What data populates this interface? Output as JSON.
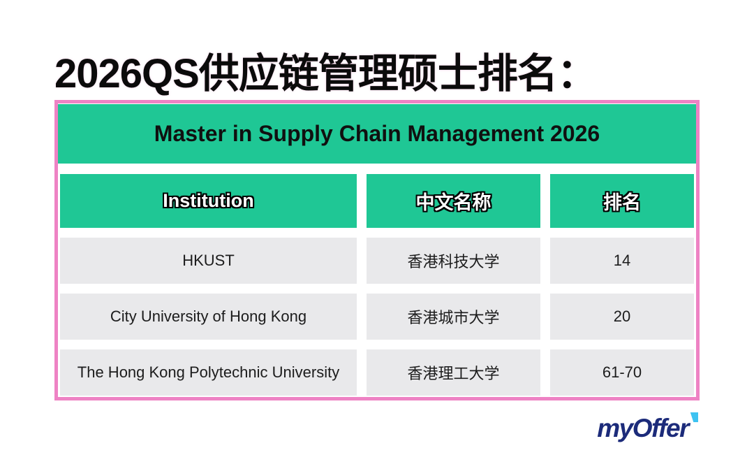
{
  "page": {
    "title": "2026QS供应链管理硕士排名："
  },
  "table": {
    "banner_title": "Master in Supply Chain Management 2026",
    "columns": [
      "Institution",
      "中文名称",
      "排名"
    ],
    "rows": [
      {
        "institution": "HKUST",
        "chinese_name": "香港科技大学",
        "rank": "14"
      },
      {
        "institution": "City University of Hong Kong",
        "chinese_name": "香港城市大学",
        "rank": "20"
      },
      {
        "institution": "The Hong Kong Polytechnic University",
        "chinese_name": "香港理工大学",
        "rank": "61-70"
      }
    ]
  },
  "logo": {
    "text": "myOffer",
    "arrow_icon": "arrow-ne-icon"
  },
  "colors": {
    "background": "#ffffff",
    "accent_green": "#1fc795",
    "border_pink": "#ee82c4",
    "row_gray": "#e9e9eb",
    "title_black": "#0b0b0b",
    "header_text_white": "#ffffff",
    "logo_navy": "#1c2b7a",
    "logo_cyan": "#3dc2f1"
  },
  "chart_data": {
    "type": "table",
    "title": "Master in Supply Chain Management 2026",
    "columns": [
      "Institution",
      "中文名称",
      "排名"
    ],
    "rows": [
      [
        "HKUST",
        "香港科技大学",
        "14"
      ],
      [
        "City University of Hong Kong",
        "香港城市大学",
        "20"
      ],
      [
        "The Hong Kong Polytechnic University",
        "香港理工大学",
        "61-70"
      ]
    ]
  }
}
